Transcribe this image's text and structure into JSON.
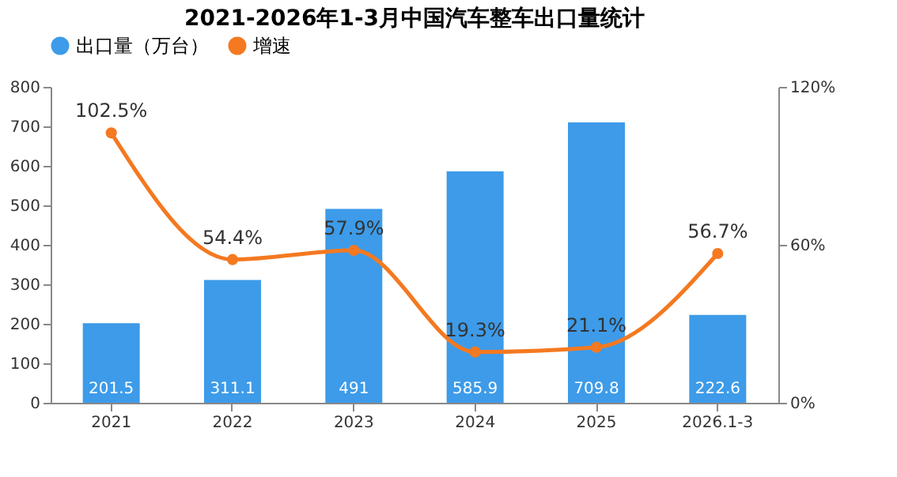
{
  "chart_data": {
    "type": "bar",
    "title": "2021-2026年1-3月中国汽车整车出口量统计",
    "categories": [
      "2021",
      "2022",
      "2023",
      "2024",
      "2025",
      "2026.1-3"
    ],
    "series": [
      {
        "name": "出口量（万台）",
        "color": "#3d9be9",
        "values": [
          201.5,
          311.1,
          491,
          585.9,
          709.8,
          222.6
        ],
        "value_labels": [
          "201.5",
          "311.1",
          "491",
          "585.9",
          "709.8",
          "222.6"
        ]
      },
      {
        "name": "增速",
        "type": "line",
        "axis": "y2",
        "color": "#f47920",
        "values": [
          102.5,
          54.4,
          57.9,
          19.3,
          21.1,
          56.7
        ],
        "value_labels": [
          "102.5%",
          "54.4%",
          "57.9%",
          "19.3%",
          "21.1%",
          "56.7%"
        ]
      }
    ],
    "ylim": [
      0,
      800
    ],
    "yticks": [
      0,
      100,
      200,
      300,
      400,
      500,
      600,
      700,
      800
    ],
    "y2lim": [
      0,
      120
    ],
    "y2ticks": [
      {
        "value": 0,
        "label": "0%"
      },
      {
        "value": 60,
        "label": "60%"
      },
      {
        "value": 120,
        "label": "120%"
      }
    ],
    "legend": "top",
    "grid": false,
    "marker": "circle",
    "line_style": "solid"
  }
}
